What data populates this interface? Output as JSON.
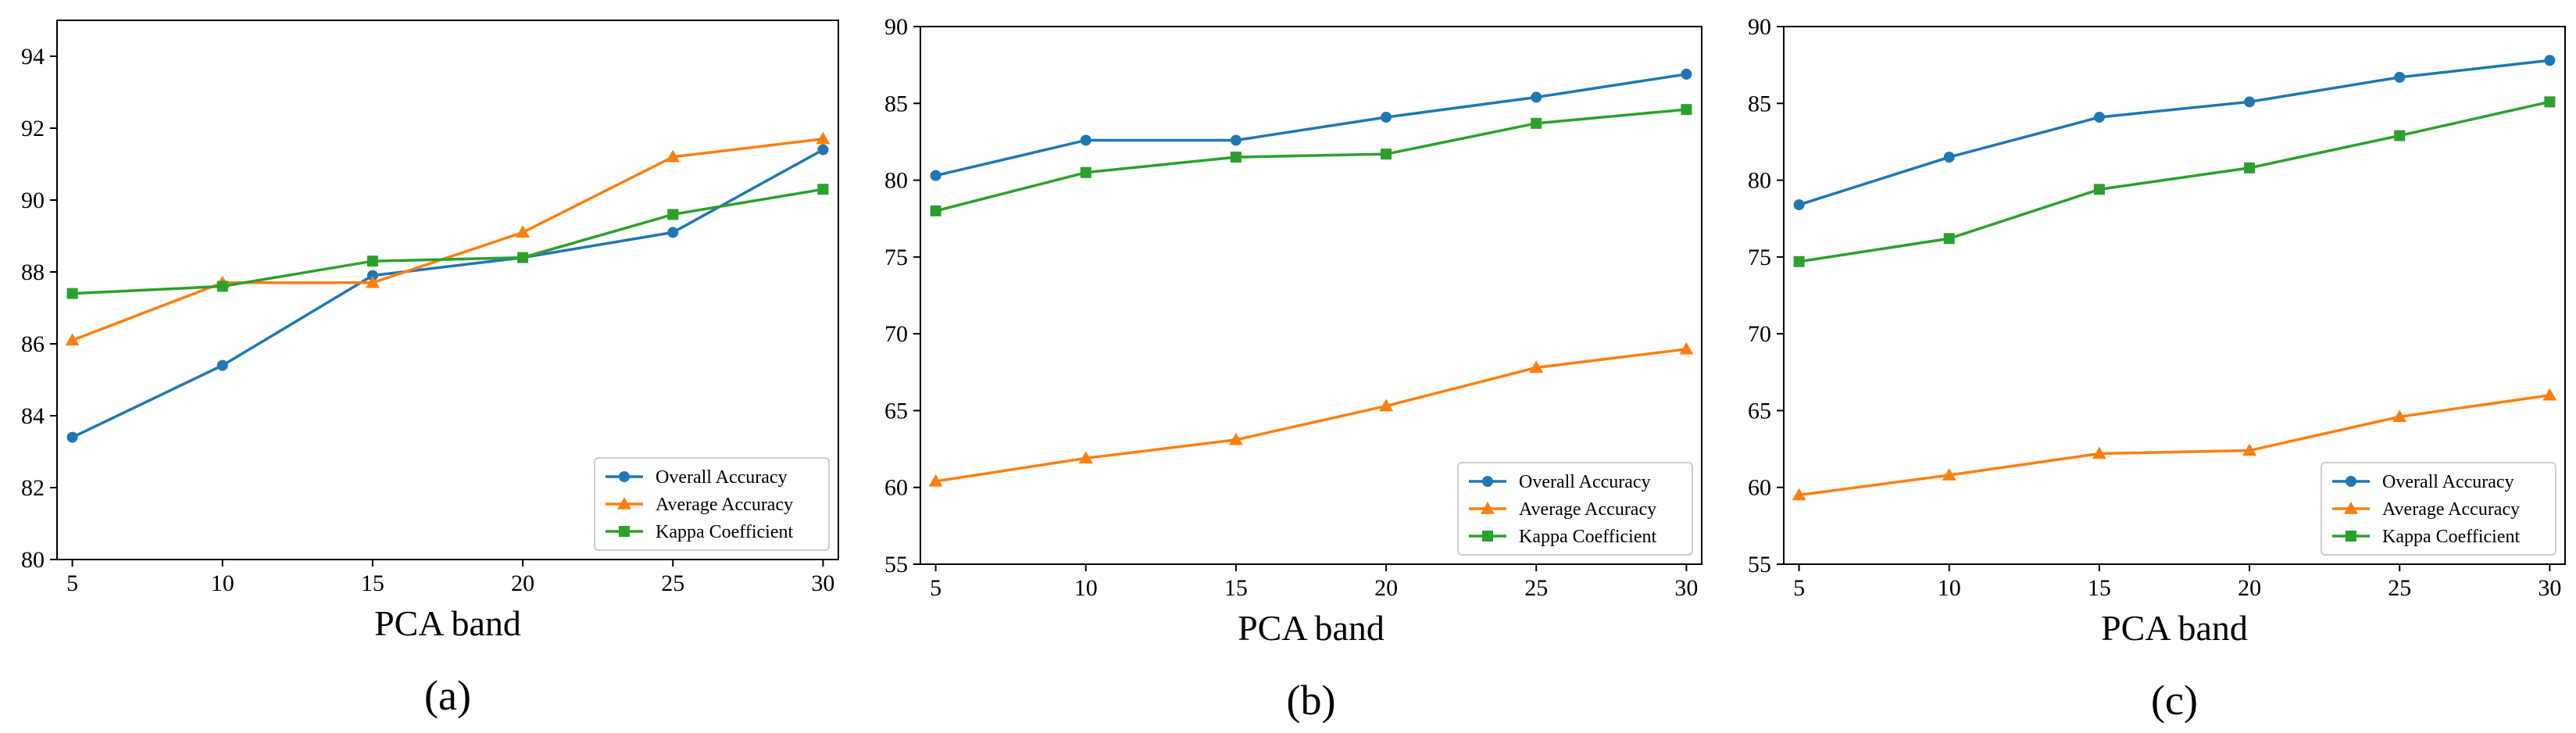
{
  "chart_data": [
    {
      "type": "line",
      "caption": "(a)",
      "title": "",
      "xlabel": "PCA band",
      "ylabel": "",
      "x": [
        5,
        10,
        15,
        20,
        25,
        30
      ],
      "xticks": [
        "5",
        "10",
        "15",
        "20",
        "25",
        "30"
      ],
      "ylim": [
        80,
        95
      ],
      "yticks": [
        "80",
        "82",
        "84",
        "86",
        "88",
        "90",
        "92",
        "94"
      ],
      "ytick_values": [
        80,
        82,
        84,
        86,
        88,
        90,
        92,
        94
      ],
      "legend_position": "lower-right",
      "series": [
        {
          "name": "Overall Accuracy",
          "color": "#1f77b4",
          "marker": "circle",
          "values": [
            83.4,
            85.4,
            87.9,
            88.4,
            89.1,
            91.4
          ]
        },
        {
          "name": "Average Accuracy",
          "color": "#ff7f0e",
          "marker": "triangle",
          "values": [
            86.1,
            87.7,
            87.7,
            89.1,
            91.2,
            91.7
          ]
        },
        {
          "name": "Kappa Coefficient",
          "color": "#2ca02c",
          "marker": "square",
          "values": [
            87.4,
            87.6,
            88.3,
            88.4,
            89.6,
            90.3
          ]
        }
      ]
    },
    {
      "type": "line",
      "caption": "(b)",
      "title": "",
      "xlabel": "PCA band",
      "ylabel": "",
      "x": [
        5,
        10,
        15,
        20,
        25,
        30
      ],
      "xticks": [
        "5",
        "10",
        "15",
        "20",
        "25",
        "30"
      ],
      "ylim": [
        55,
        90
      ],
      "yticks": [
        "55",
        "60",
        "65",
        "70",
        "75",
        "80",
        "85",
        "90"
      ],
      "ytick_values": [
        55,
        60,
        65,
        70,
        75,
        80,
        85,
        90
      ],
      "legend_position": "lower-right",
      "series": [
        {
          "name": "Overall Accuracy",
          "color": "#1f77b4",
          "marker": "circle",
          "values": [
            80.3,
            82.6,
            82.6,
            84.1,
            85.4,
            86.9
          ]
        },
        {
          "name": "Average Accuracy",
          "color": "#ff7f0e",
          "marker": "triangle",
          "values": [
            60.4,
            61.9,
            63.1,
            65.3,
            67.8,
            69.0
          ]
        },
        {
          "name": "Kappa Coefficient",
          "color": "#2ca02c",
          "marker": "square",
          "values": [
            78.0,
            80.5,
            81.5,
            81.7,
            83.7,
            84.6
          ]
        }
      ]
    },
    {
      "type": "line",
      "caption": "(c)",
      "title": "",
      "xlabel": "PCA band",
      "ylabel": "",
      "x": [
        5,
        10,
        15,
        20,
        25,
        30
      ],
      "xticks": [
        "5",
        "10",
        "15",
        "20",
        "25",
        "30"
      ],
      "ylim": [
        55,
        90
      ],
      "yticks": [
        "55",
        "60",
        "65",
        "70",
        "75",
        "80",
        "85",
        "90"
      ],
      "ytick_values": [
        55,
        60,
        65,
        70,
        75,
        80,
        85,
        90
      ],
      "legend_position": "lower-right",
      "series": [
        {
          "name": "Overall Accuracy",
          "color": "#1f77b4",
          "marker": "circle",
          "values": [
            78.4,
            81.5,
            84.1,
            85.1,
            86.7,
            87.8
          ]
        },
        {
          "name": "Average Accuracy",
          "color": "#ff7f0e",
          "marker": "triangle",
          "values": [
            59.5,
            60.8,
            62.2,
            62.4,
            64.6,
            66.0
          ]
        },
        {
          "name": "Kappa Coefficient",
          "color": "#2ca02c",
          "marker": "square",
          "values": [
            74.7,
            76.2,
            79.4,
            80.8,
            82.9,
            85.1
          ]
        }
      ]
    }
  ]
}
